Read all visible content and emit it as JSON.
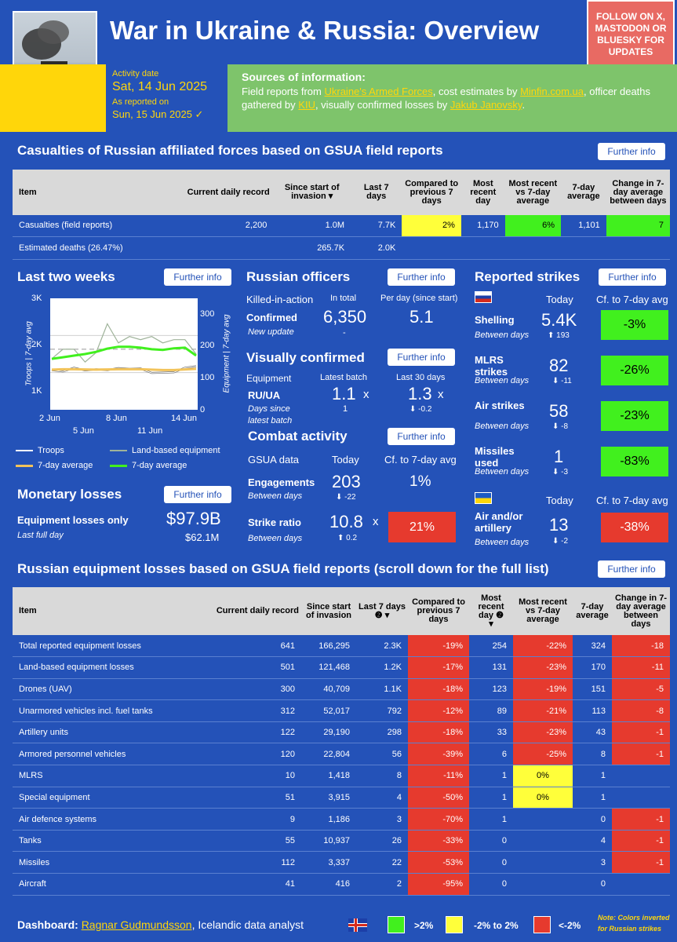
{
  "header": {
    "title": "War in Ukraine & Russia: Overview",
    "follow": "FOLLOW ON X, MASTODON OR BLUESKY FOR UPDATES",
    "activity_label": "Activity date",
    "activity_date": "Sat, 14 Jun 2025",
    "reported_label": "As reported on",
    "reported_date": "Sun, 15 Jun 2025 ✓",
    "sources_title": "Sources of information:",
    "sources_t1": "Field reports from ",
    "sources_l1": "Ukraine's Armed Forces",
    "sources_t2": ", cost estimates by ",
    "sources_l2": "Minfin.com.ua",
    "sources_t3": ", officer deaths gathered by ",
    "sources_l3": "KIU",
    "sources_t4": ", visually confirmed losses by ",
    "sources_l4": "Jakub Janovsky",
    "sources_t5": "."
  },
  "buttons": {
    "further_info": "Further info"
  },
  "casualties": {
    "title": "Casualties of Russian affiliated forces based on GSUA field reports",
    "headers": [
      "Item",
      "Current daily record",
      "Since start of invasion",
      "Last 7 days",
      "Compared to previous 7 days",
      "Most recent day",
      "Most recent vs 7-day average",
      "7-day average",
      "Change in 7-day average between days"
    ],
    "sort_mark": "▾",
    "rows": [
      [
        "Casualties (field reports)",
        "2,200",
        "1.0M",
        "7.7K",
        "2%",
        "1,170",
        "6%",
        "1,101",
        "7"
      ],
      [
        "Estimated deaths (26.47%)",
        "",
        "265.7K",
        "2.0K",
        "",
        "",
        "",
        "",
        ""
      ]
    ]
  },
  "two_weeks": {
    "title": "Last two weeks",
    "left_axis_label": "Troops | 7-day avg",
    "right_axis_label": "Equipment | 7-day avg",
    "left_ticks": [
      "3K",
      "2K",
      "1K"
    ],
    "right_ticks": [
      "300",
      "200",
      "100",
      "0"
    ],
    "x_top": [
      "2 Jun",
      "8 Jun",
      "14 Jun"
    ],
    "x_bottom": [
      "5 Jun",
      "11 Jun"
    ],
    "legend": [
      "Troops",
      "Land-based equipment",
      "7-day average",
      "7-day average"
    ]
  },
  "chart_data": {
    "type": "line",
    "x": [
      "1 Jun",
      "2 Jun",
      "3 Jun",
      "4 Jun",
      "5 Jun",
      "6 Jun",
      "7 Jun",
      "8 Jun",
      "9 Jun",
      "10 Jun",
      "11 Jun",
      "12 Jun",
      "13 Jun",
      "14 Jun"
    ],
    "series": [
      {
        "name": "Troops",
        "axis": "left",
        "values": [
          1070,
          1030,
          1130,
          1060,
          1090,
          1070,
          1120,
          1100,
          1110,
          990,
          1000,
          1010,
          1130,
          1170
        ]
      },
      {
        "name": "7-day average",
        "axis": "left",
        "values": [
          1080,
          1090,
          1090,
          1085,
          1080,
          1085,
          1090,
          1090,
          1090,
          1080,
          1070,
          1070,
          1085,
          1100
        ]
      },
      {
        "name": "Land-based equipment",
        "axis": "right",
        "values": [
          160,
          190,
          190,
          150,
          180,
          270,
          210,
          230,
          220,
          230,
          210,
          220,
          220,
          175
        ]
      },
      {
        "name": "7-day average",
        "axis": "right",
        "values": [
          160,
          165,
          170,
          175,
          182,
          192,
          198,
          198,
          195,
          190,
          188,
          193,
          195,
          170
        ]
      }
    ],
    "ylim_left": [
      0,
      3000
    ],
    "ylim_right": [
      0,
      350
    ]
  },
  "officers": {
    "title": "Russian officers",
    "kia": "Killed-in-action",
    "in_total": "In total",
    "per_day": "Per day (since start)",
    "confirmed": "Confirmed",
    "total_value": "6,350",
    "per_day_value": "5.1",
    "new_update": "New update",
    "dash": "-"
  },
  "visual": {
    "title": "Visually confirmed",
    "equipment": "Equipment",
    "latest_batch": "Latest batch",
    "last30": "Last 30 days",
    "ruua": "RU/UA",
    "latest_value": "1.1",
    "last30_value": "1.3",
    "x_mark": "x",
    "days_since": "Days since latest batch",
    "days_value": "1",
    "delta": "⬇ -0.2"
  },
  "combat": {
    "title": "Combat activity",
    "gsua": "GSUA data",
    "today": "Today",
    "cf": "Cf. to 7-day avg",
    "engagements": "Engagements",
    "eng_value": "203",
    "eng_pct": "1%",
    "between": "Between days",
    "eng_delta": "⬇ -22",
    "strike_ratio": "Strike ratio",
    "sr_value": "10.8",
    "sr_x": "x",
    "sr_pct": "21%",
    "sr_delta": "⬆ 0.2"
  },
  "monetary": {
    "title": "Monetary losses",
    "equip_only": "Equipment losses only",
    "value": "$97.9B",
    "last_full_day": "Last full day",
    "last_value": "$62.1M"
  },
  "strikes": {
    "title": "Reported strikes",
    "today": "Today",
    "cf": "Cf. to 7-day avg",
    "between": "Between days",
    "ru_items": [
      {
        "label": "Shelling",
        "value": "5.4K",
        "delta": "⬆ 193",
        "pct": "-3%"
      },
      {
        "label": "MLRS strikes",
        "value": "82",
        "delta": "⬇ -11",
        "pct": "-26%"
      },
      {
        "label": "Air strikes",
        "value": "58",
        "delta": "⬇ -8",
        "pct": "-23%"
      },
      {
        "label": "Missiles used",
        "value": "1",
        "delta": "⬇ -3",
        "pct": "-83%"
      }
    ],
    "ua_item": {
      "label": "Air and/or artillery",
      "value": "13",
      "delta": "⬇ -2",
      "pct": "-38%"
    }
  },
  "equipment": {
    "title": "Russian equipment losses based on GSUA field reports (scroll down for the full list)",
    "headers": [
      "Item",
      "Current daily record",
      "Since start of invasion",
      "Last 7 days",
      "Compared to previous 7 days",
      "Most recent day",
      "Most recent vs 7-day average",
      "7-day average",
      "Change in 7-day average between days"
    ],
    "sort_mark": "▾",
    "info_mark": "❷",
    "rows": [
      [
        "Total reported equipment losses",
        "641",
        "166,295",
        "2.3K",
        "-19%",
        "254",
        "-22%",
        "324",
        "-18"
      ],
      [
        "Land-based equipment losses",
        "501",
        "121,468",
        "1.2K",
        "-17%",
        "131",
        "-23%",
        "170",
        "-11"
      ],
      [
        "Drones (UAV)",
        "300",
        "40,709",
        "1.1K",
        "-18%",
        "123",
        "-19%",
        "151",
        "-5"
      ],
      [
        "Unarmored vehicles incl. fuel tanks",
        "312",
        "52,017",
        "792",
        "-12%",
        "89",
        "-21%",
        "113",
        "-8"
      ],
      [
        "Artillery units",
        "122",
        "29,190",
        "298",
        "-18%",
        "33",
        "-23%",
        "43",
        "-1"
      ],
      [
        "Armored personnel vehicles",
        "120",
        "22,804",
        "56",
        "-39%",
        "6",
        "-25%",
        "8",
        "-1"
      ],
      [
        "MLRS",
        "10",
        "1,418",
        "8",
        "-11%",
        "1",
        "0%",
        "1",
        ""
      ],
      [
        "Special equipment",
        "51",
        "3,915",
        "4",
        "-50%",
        "1",
        "0%",
        "1",
        ""
      ],
      [
        "Air defence systems",
        "9",
        "1,186",
        "3",
        "-70%",
        "1",
        "",
        "0",
        "-1"
      ],
      [
        "Tanks",
        "55",
        "10,937",
        "26",
        "-33%",
        "0",
        "",
        "4",
        "-1"
      ],
      [
        "Missiles",
        "112",
        "3,337",
        "22",
        "-53%",
        "0",
        "",
        "3",
        "-1"
      ],
      [
        "Aircraft",
        "41",
        "416",
        "2",
        "-95%",
        "0",
        "",
        "0",
        ""
      ]
    ]
  },
  "footer": {
    "dashboard": "Dashboard:",
    "author": "Ragnar Gudmundsson",
    "role": ", Icelandic data analyst",
    "leg_green": ">2%",
    "leg_yellow": "-2% to 2%",
    "leg_red": "<-2%",
    "note": "Note: Colors inverted for Russian strikes"
  },
  "colors": {
    "bg": "#2452b8",
    "yellow": "#ffd60a",
    "green": "#41f01e",
    "red": "#e63a2e",
    "header_green": "#7ec46b"
  }
}
